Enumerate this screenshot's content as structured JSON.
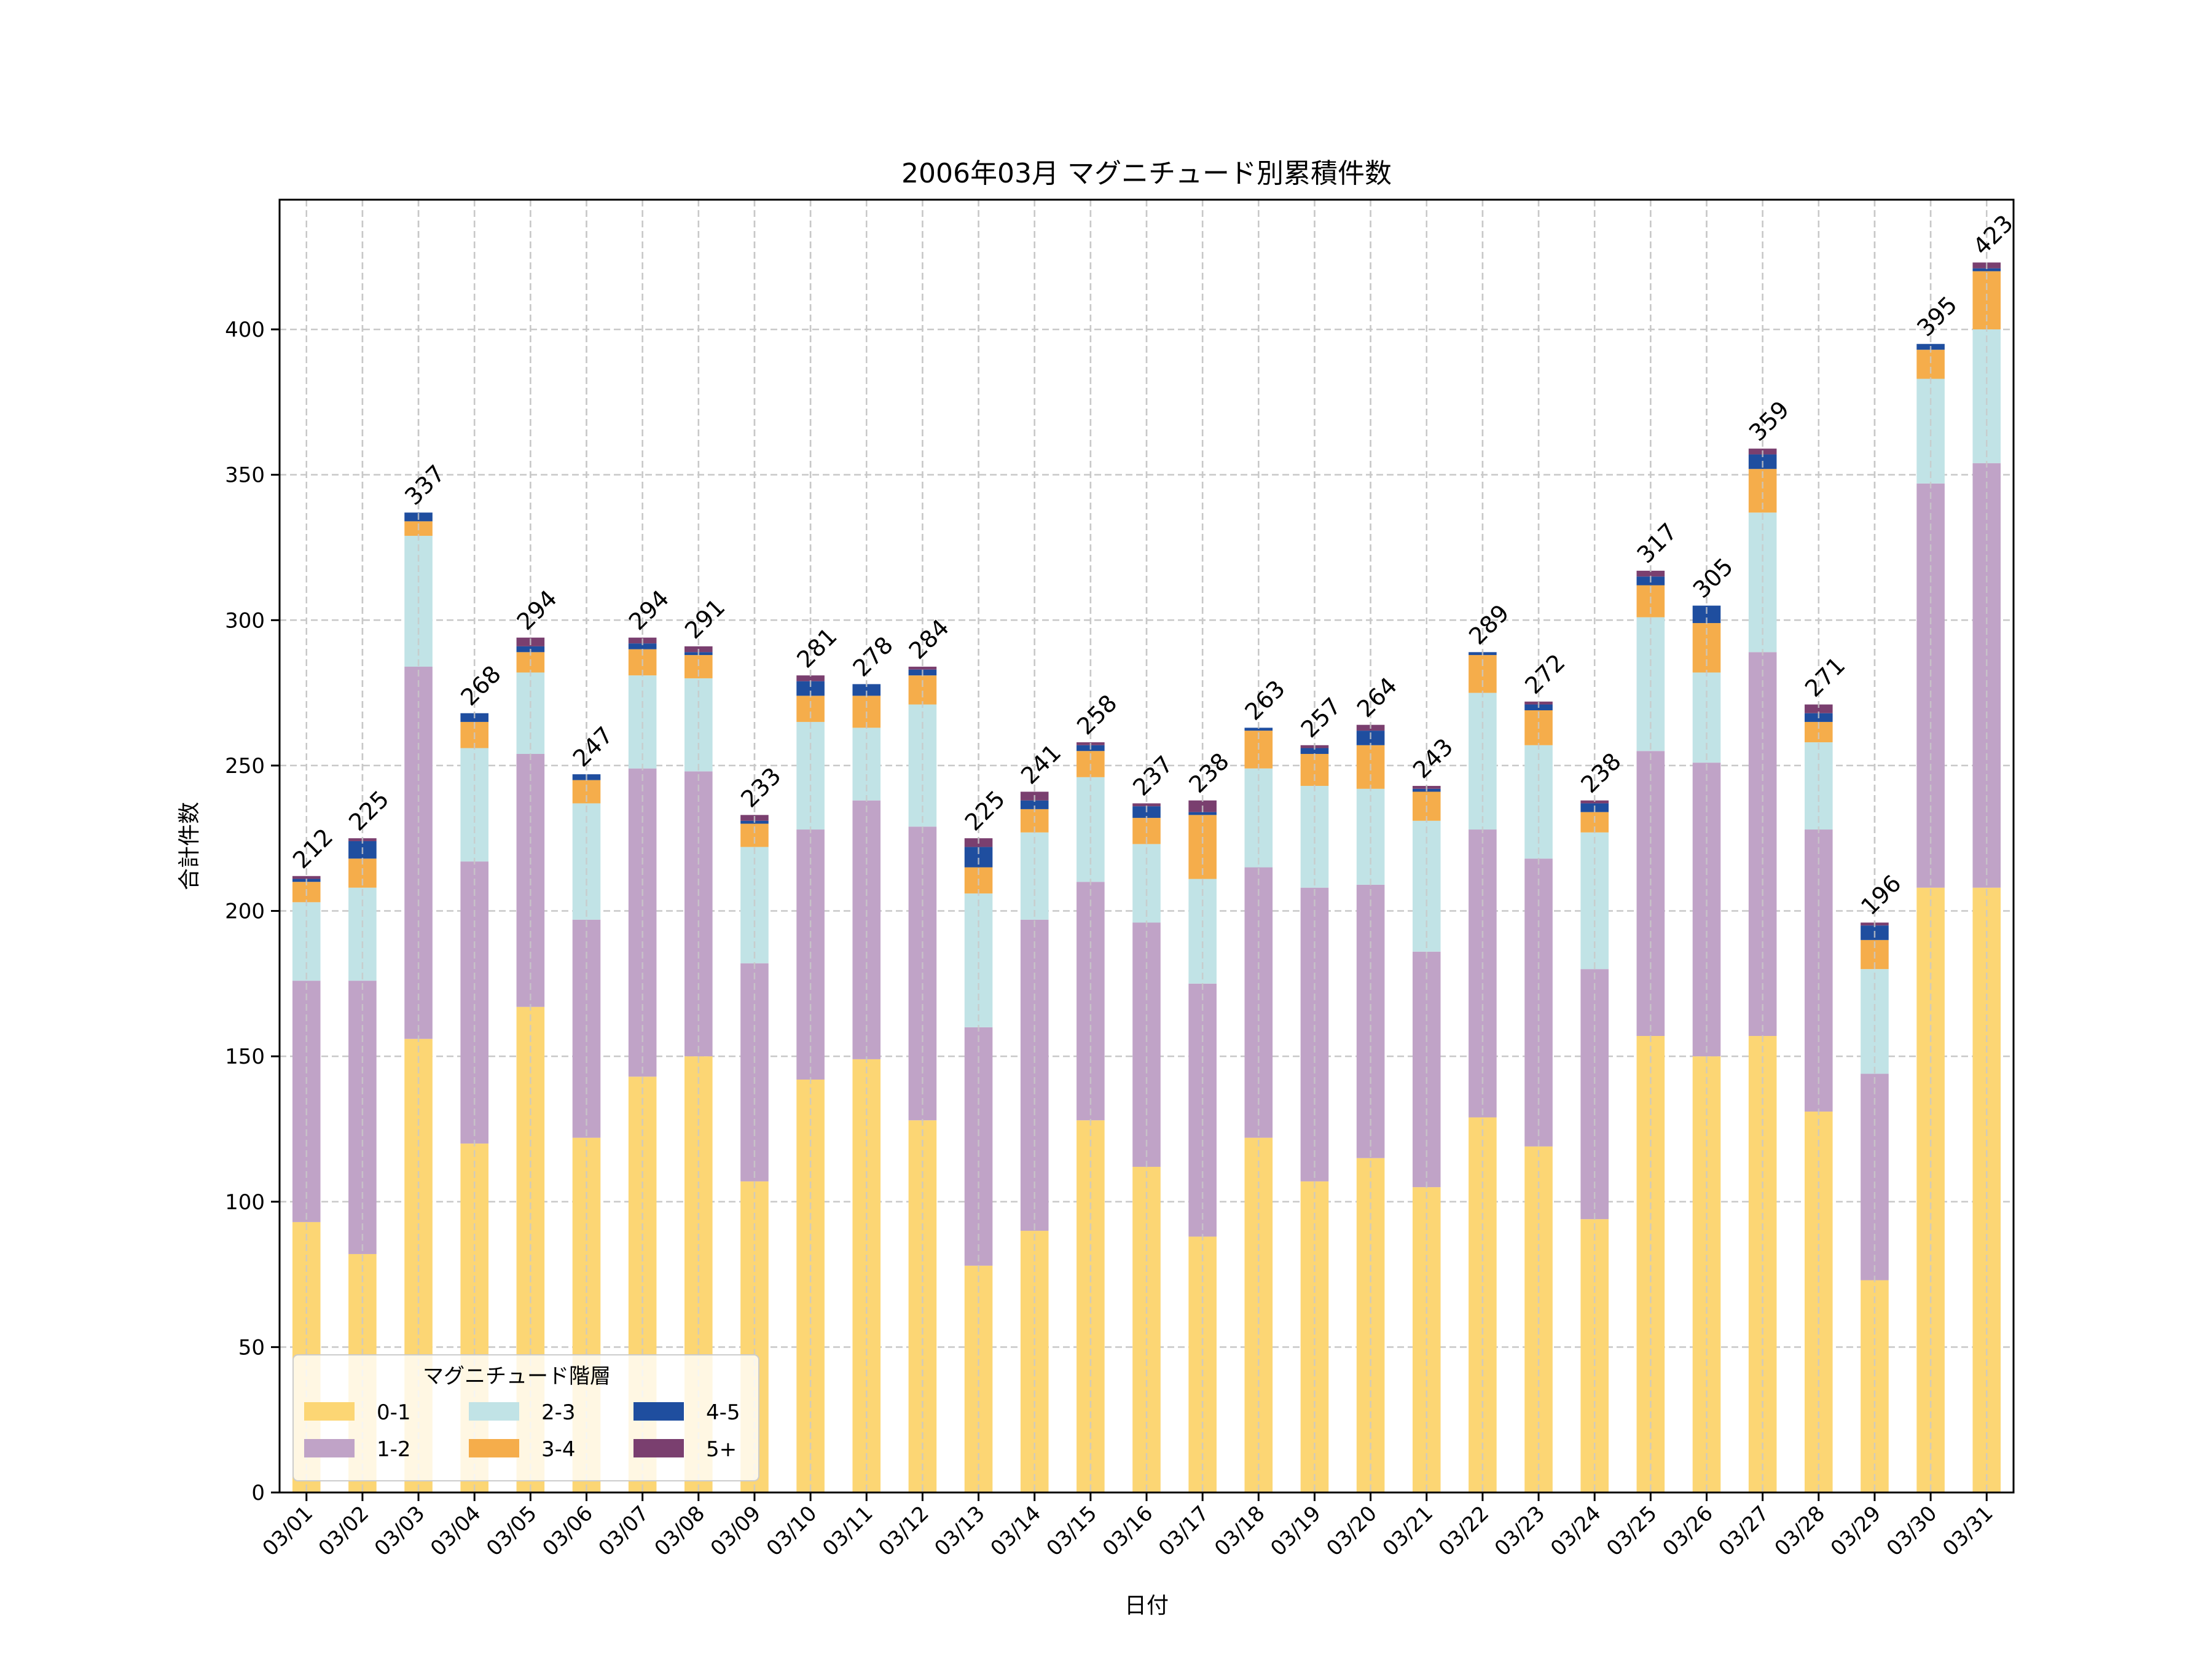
{
  "chart_data": {
    "type": "bar",
    "stacked": true,
    "title": "2006年03月 マグニチュード別累積件数",
    "xlabel": "日付",
    "ylabel": "合計件数",
    "ylim": [
      0,
      444.6
    ],
    "yticks": [
      0,
      50,
      100,
      150,
      200,
      250,
      300,
      350,
      400
    ],
    "grid": true,
    "legend": {
      "title": "マグニチュード階層",
      "placement": "lower-left",
      "columns": 3
    },
    "categories": [
      "03/01",
      "03/02",
      "03/03",
      "03/04",
      "03/05",
      "03/06",
      "03/07",
      "03/08",
      "03/09",
      "03/10",
      "03/11",
      "03/12",
      "03/13",
      "03/14",
      "03/15",
      "03/16",
      "03/17",
      "03/18",
      "03/19",
      "03/20",
      "03/21",
      "03/22",
      "03/23",
      "03/24",
      "03/25",
      "03/26",
      "03/27",
      "03/28",
      "03/29",
      "03/30",
      "03/31"
    ],
    "series": [
      {
        "name": "0-1",
        "color": "#fcd674",
        "values": [
          93,
          82,
          156,
          120,
          167,
          122,
          143,
          150,
          107,
          142,
          149,
          128,
          78,
          90,
          128,
          112,
          88,
          122,
          107,
          115,
          105,
          129,
          119,
          94,
          157,
          150,
          157,
          131,
          73,
          208,
          208
        ]
      },
      {
        "name": "1-2",
        "color": "#c0a3c7",
        "values": [
          83,
          94,
          128,
          97,
          87,
          75,
          106,
          98,
          75,
          86,
          89,
          101,
          82,
          107,
          82,
          84,
          87,
          93,
          101,
          94,
          81,
          99,
          99,
          86,
          98,
          101,
          132,
          97,
          71,
          139,
          146
        ]
      },
      {
        "name": "2-3",
        "color": "#c1e3e6",
        "values": [
          27,
          32,
          45,
          39,
          28,
          40,
          32,
          32,
          40,
          37,
          25,
          42,
          46,
          30,
          36,
          27,
          36,
          34,
          35,
          33,
          45,
          47,
          39,
          47,
          46,
          31,
          48,
          30,
          36,
          36,
          46
        ]
      },
      {
        "name": "3-4",
        "color": "#f5ad4b",
        "values": [
          7,
          10,
          5,
          9,
          7,
          8,
          9,
          8,
          8,
          9,
          11,
          10,
          9,
          8,
          9,
          9,
          22,
          13,
          11,
          15,
          10,
          13,
          12,
          7,
          11,
          17,
          15,
          7,
          10,
          10,
          20
        ]
      },
      {
        "name": "4-5",
        "color": "#1f4e9f",
        "values": [
          1,
          6,
          3,
          3,
          2,
          2,
          2,
          1,
          1,
          5,
          4,
          2,
          7,
          3,
          2,
          4,
          1,
          1,
          2,
          5,
          1,
          1,
          2,
          3,
          3,
          6,
          5,
          3,
          5,
          2,
          1
        ]
      },
      {
        "name": "5+",
        "color": "#7a3f6f",
        "values": [
          1,
          1,
          0,
          0,
          3,
          0,
          2,
          2,
          2,
          2,
          0,
          1,
          3,
          3,
          1,
          1,
          4,
          0,
          1,
          2,
          1,
          0,
          1,
          1,
          2,
          0,
          2,
          3,
          1,
          0,
          2
        ]
      }
    ],
    "totals": [
      212,
      225,
      337,
      268,
      294,
      247,
      294,
      291,
      233,
      281,
      278,
      284,
      225,
      241,
      258,
      237,
      238,
      263,
      257,
      264,
      243,
      289,
      272,
      238,
      317,
      305,
      359,
      271,
      196,
      395,
      423
    ]
  }
}
